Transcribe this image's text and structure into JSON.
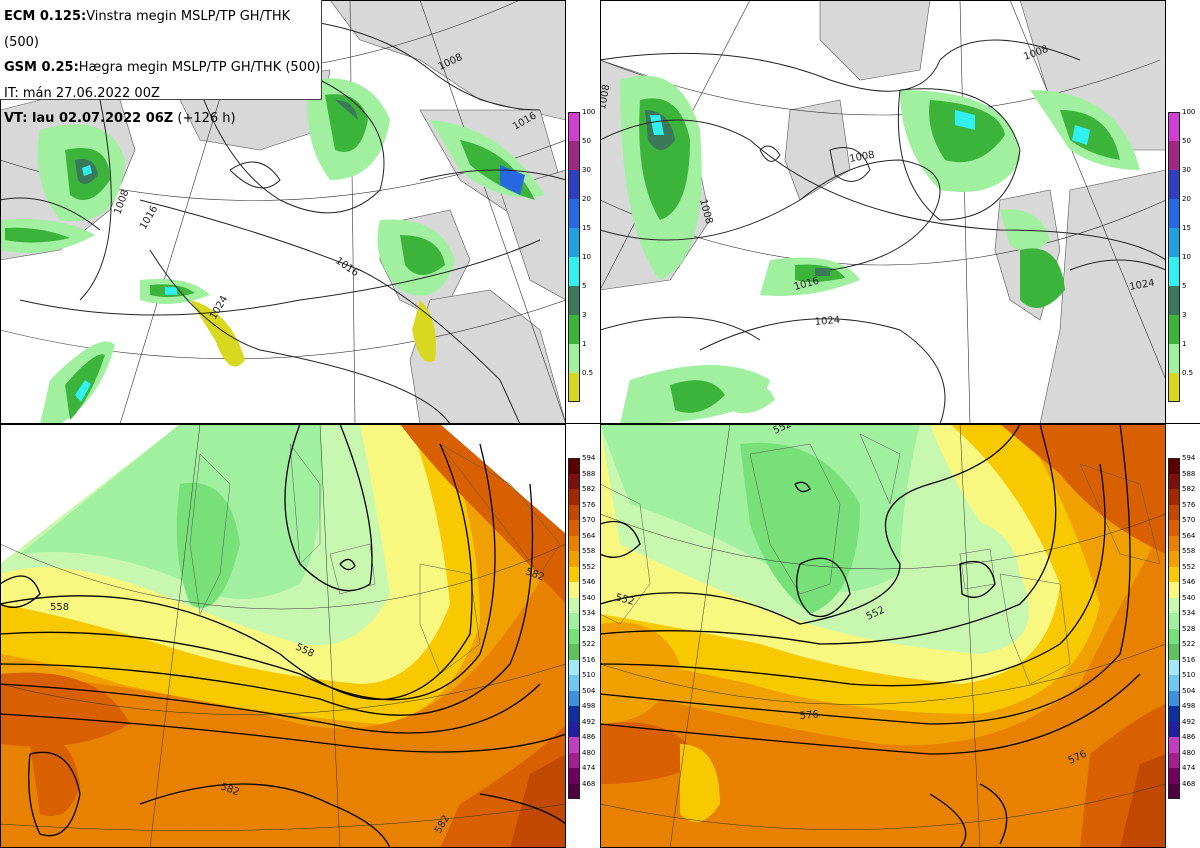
{
  "header": {
    "ecm_label": "ECM 0.125:",
    "ecm_text": "Vinstra megin MSLP/TP GH/THK (500)",
    "gsm_label": "GSM 0.25:",
    "gsm_text": "Hægra megin MSLP/TP GH/THK (500)",
    "it_line": "IT: mán 27.06.2022 00Z",
    "vt_label": "VT: lau 02.07.2022 06Z",
    "vt_offset": "(+126 h)"
  },
  "precip_scale": {
    "ticks": [
      "100",
      "50",
      "30",
      "20",
      "15",
      "10",
      "5",
      "3",
      "1",
      "0.5"
    ],
    "colors": [
      "#d040d0",
      "#a02880",
      "#3040c0",
      "#2868e0",
      "#20a0e0",
      "#30f0f0",
      "#3a7a5a",
      "#3cb43c",
      "#a0f0a0",
      "#d8d820"
    ]
  },
  "thickness_scale": {
    "ticks": [
      "594",
      "588",
      "582",
      "576",
      "570",
      "564",
      "558",
      "552",
      "546",
      "540",
      "534",
      "528",
      "522",
      "516",
      "510",
      "504",
      "498",
      "492",
      "486",
      "480",
      "474",
      "468"
    ],
    "colors": [
      "#5a0000",
      "#7a1010",
      "#a02800",
      "#c04800",
      "#d86000",
      "#e88000",
      "#f0a000",
      "#f8c800",
      "#f8f880",
      "#c8f8b0",
      "#a0f0a0",
      "#78e078",
      "#60c060",
      "#a0e8f8",
      "#70c8f0",
      "#4090e0",
      "#1030a0",
      "#2020a0",
      "#c040c0",
      "#a02090",
      "#700060",
      "#500040"
    ]
  },
  "contour_labels": {
    "tl": [
      "1008",
      "1016",
      "1016",
      "1024",
      "1008",
      "1016"
    ],
    "tr": [
      "1008",
      "1008",
      "1008",
      "1008",
      "1016",
      "1024",
      "1024"
    ],
    "bl": [
      "558",
      "558",
      "582",
      "582",
      "582"
    ],
    "br": [
      "552",
      "552",
      "552",
      "576",
      "576"
    ]
  }
}
